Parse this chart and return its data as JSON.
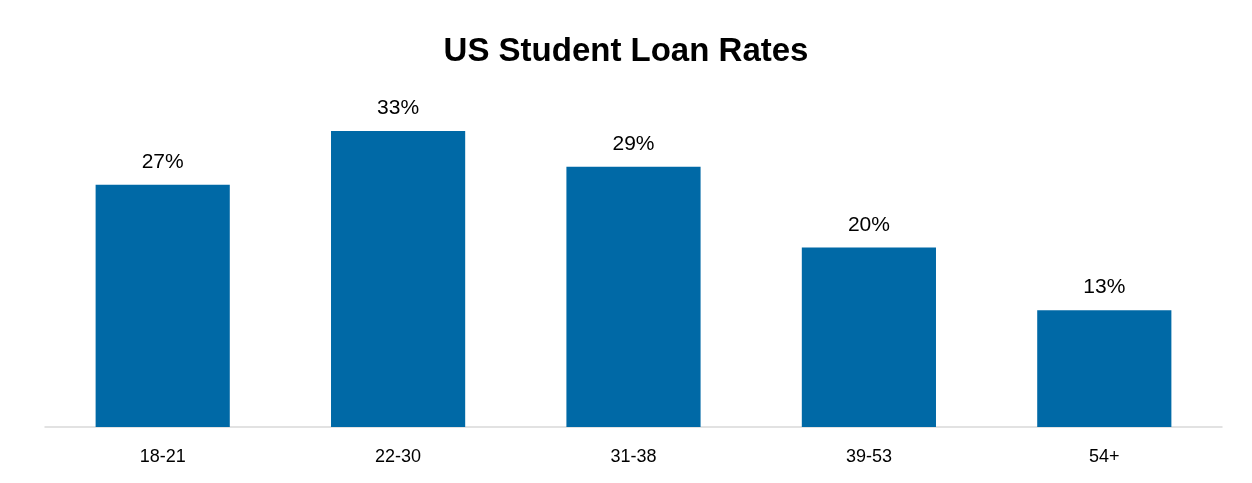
{
  "chart_data": {
    "type": "bar",
    "title": "US Student Loan Rates",
    "categories": [
      "18-21",
      "22-30",
      "31-38",
      "39-53",
      "54+"
    ],
    "values": [
      27,
      33,
      29,
      20,
      13
    ],
    "value_labels": [
      "27%",
      "33%",
      "29%",
      "20%",
      "13%"
    ],
    "color": "#0069a6"
  }
}
